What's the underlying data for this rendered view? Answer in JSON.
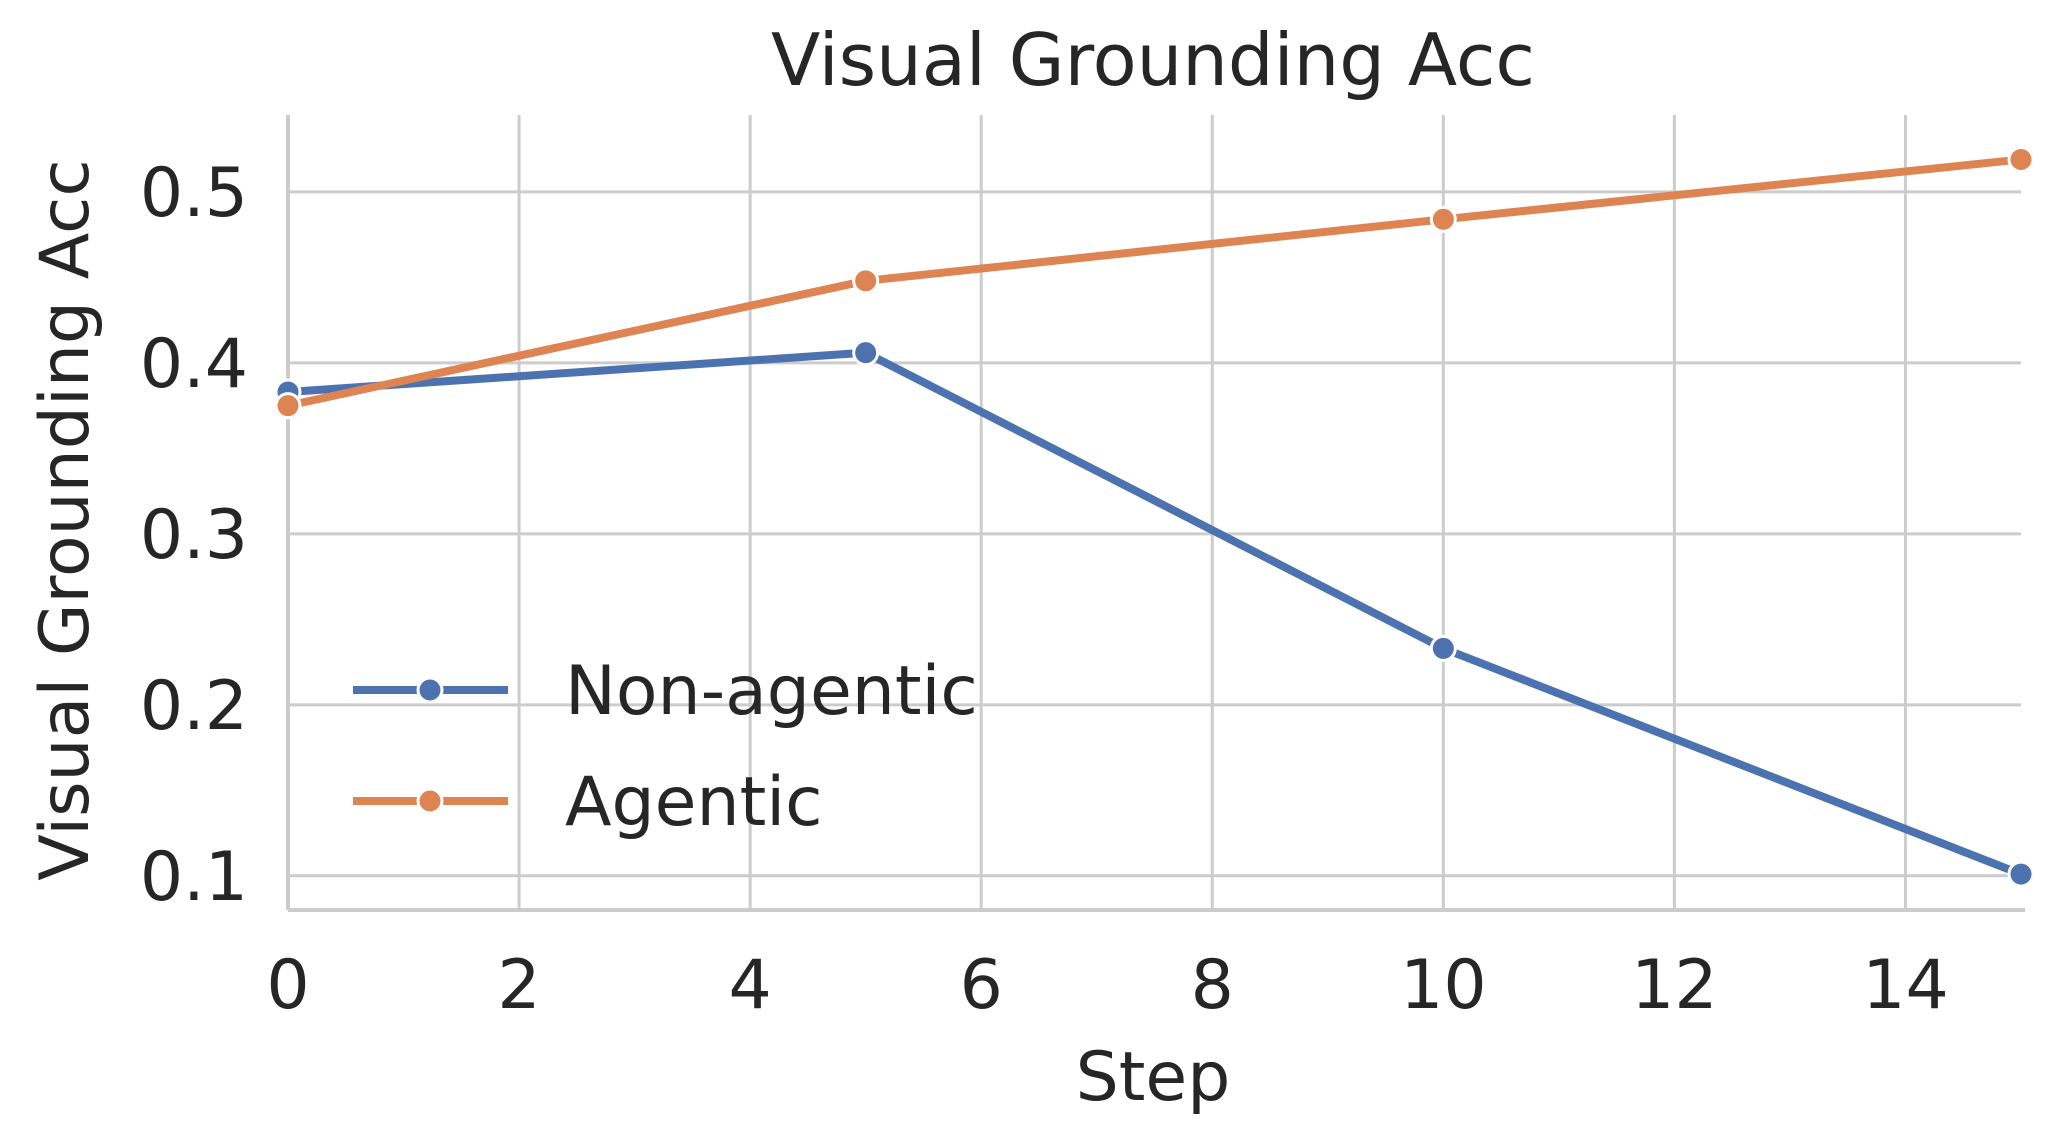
{
  "chart_data": {
    "type": "line",
    "title": "Visual Grounding Acc",
    "xlabel": "Step",
    "ylabel": "Visual Grounding Acc",
    "x": [
      0,
      5,
      10,
      15
    ],
    "series": [
      {
        "name": "Non-agentic",
        "color": "#4c72b0",
        "values": [
          0.383,
          0.406,
          0.233,
          0.101
        ]
      },
      {
        "name": "Agentic",
        "color": "#dd8452",
        "values": [
          0.375,
          0.448,
          0.484,
          0.519
        ]
      }
    ],
    "xlim": [
      0,
      15
    ],
    "ylim": [
      0.08,
      0.545
    ],
    "xticks": [
      0,
      2,
      4,
      6,
      8,
      10,
      12,
      14
    ],
    "yticks": [
      0.1,
      0.2,
      0.3,
      0.4,
      0.5
    ],
    "ytick_labels": [
      "0.1",
      "0.2",
      "0.3",
      "0.4",
      "0.5"
    ],
    "grid": true,
    "legend_position": "lower left"
  },
  "title": "Visual Grounding Acc",
  "xlabel": "Step",
  "ylabel": "Visual Grounding Acc",
  "legend": [
    {
      "label": "Non-agentic",
      "color": "#4c72b0"
    },
    {
      "label": "Agentic",
      "color": "#dd8452"
    }
  ],
  "colors": {
    "grid": "#cccccc",
    "text": "#262626",
    "background": "#ffffff"
  }
}
